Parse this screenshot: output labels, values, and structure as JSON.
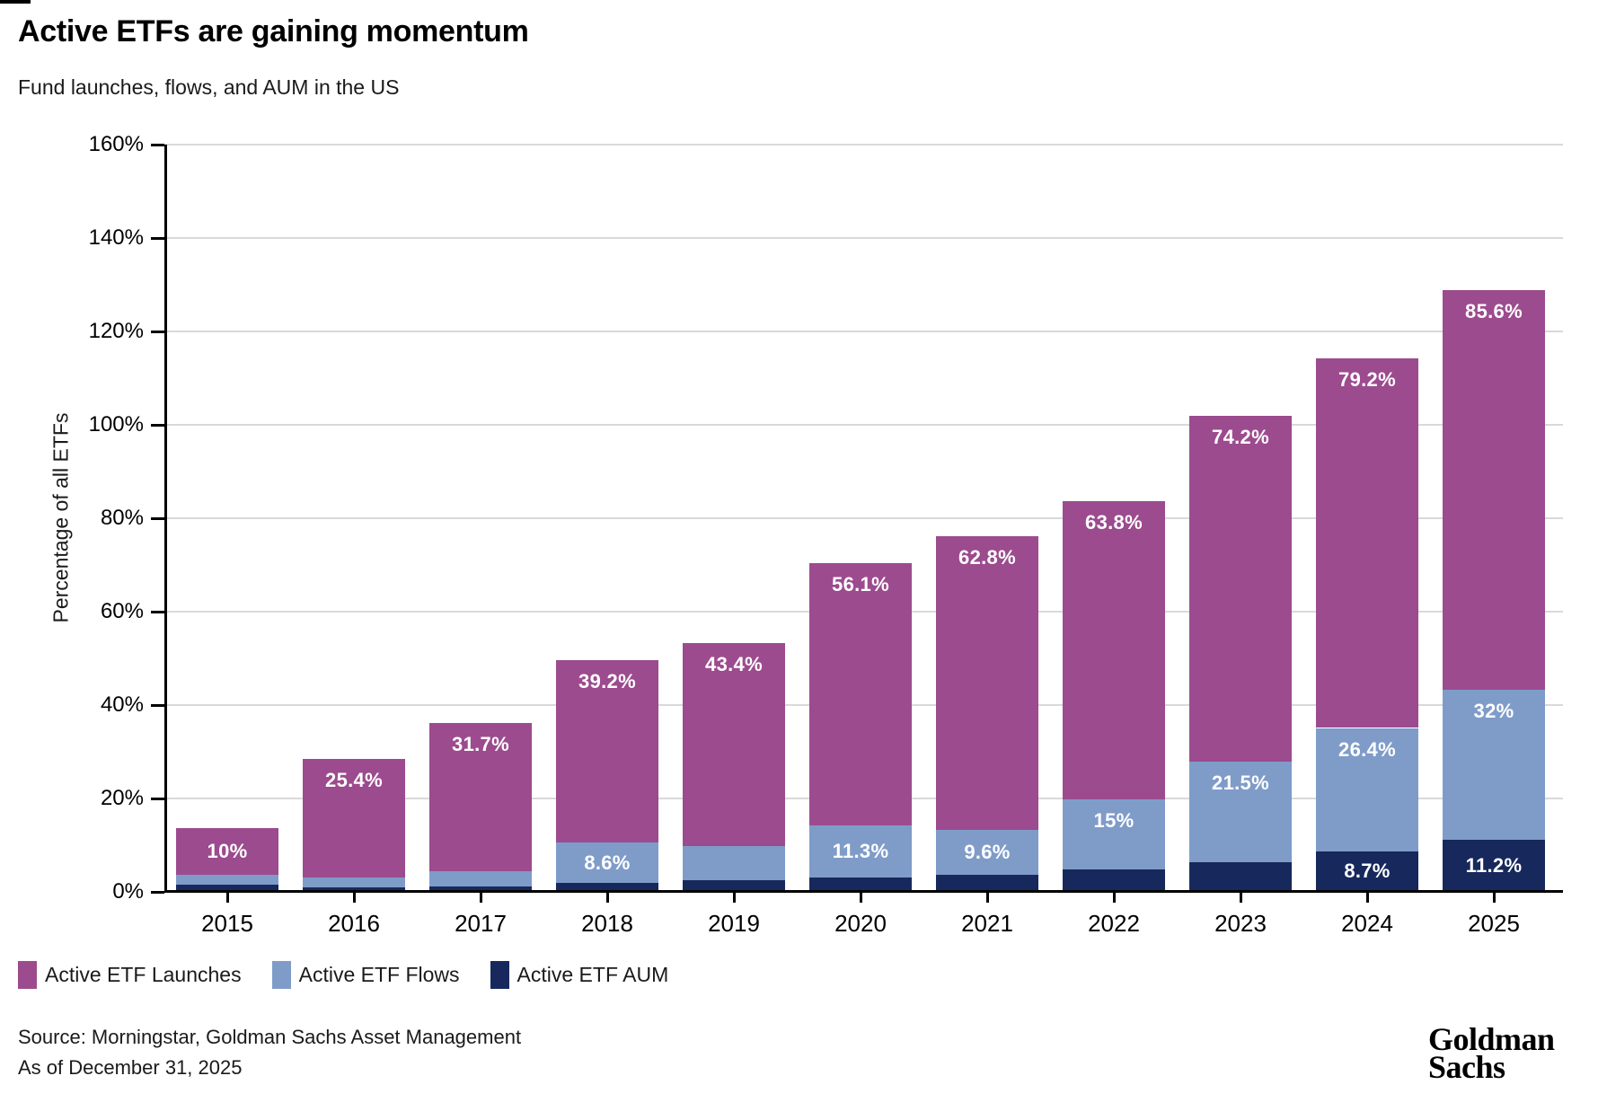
{
  "header": {
    "title": "Active ETFs are gaining momentum",
    "subtitle": "Fund launches, flows, and AUM in the US"
  },
  "chart_data": {
    "type": "bar",
    "stacked": true,
    "title": "Active ETFs are gaining momentum",
    "subtitle": "Fund launches, flows, and AUM in the US",
    "xlabel": "",
    "ylabel": "Percentage of all ETFs",
    "ylim": [
      0,
      160
    ],
    "ytick_step": 20,
    "ytick_suffix": "%",
    "grid": true,
    "legend_position": "bottom-left",
    "categories": [
      "2015",
      "2016",
      "2017",
      "2018",
      "2019",
      "2020",
      "2021",
      "2022",
      "2023",
      "2024",
      "2025"
    ],
    "series": [
      {
        "name": "Active ETF AUM",
        "color": "#17295c",
        "values": [
          1.5,
          1.0,
          1.2,
          1.9,
          2.5,
          3.0,
          3.7,
          4.8,
          6.3,
          8.7,
          11.2
        ],
        "labels": [
          null,
          null,
          null,
          null,
          null,
          null,
          null,
          null,
          null,
          "8.7%",
          "11.2%"
        ]
      },
      {
        "name": "Active ETF Flows",
        "color": "#7f9cc9",
        "values": [
          2.2,
          2.0,
          3.3,
          8.6,
          7.4,
          11.3,
          9.6,
          15,
          21.5,
          26.4,
          32
        ],
        "labels": [
          null,
          null,
          null,
          "8.6%",
          null,
          "11.3%",
          "9.6%",
          "15%",
          "21.5%",
          "26.4%",
          "32%"
        ]
      },
      {
        "name": "Active ETF Launches",
        "color": "#9c4b8e",
        "values": [
          10,
          25.4,
          31.7,
          39.2,
          43.4,
          56.1,
          62.8,
          63.8,
          74.2,
          79.2,
          85.6
        ],
        "labels": [
          "10%",
          "25.4%",
          "31.7%",
          "39.2%",
          "43.4%",
          "56.1%",
          "62.8%",
          "63.8%",
          "74.2%",
          "79.2%",
          "85.6%"
        ]
      }
    ]
  },
  "legend": {
    "items": [
      {
        "label": "Active ETF Launches",
        "color": "#9c4b8e"
      },
      {
        "label": "Active ETF Flows",
        "color": "#7f9cc9"
      },
      {
        "label": "Active ETF AUM",
        "color": "#17295c"
      }
    ]
  },
  "footer": {
    "source_line1": "Source: Morningstar, Goldman Sachs Asset Management",
    "source_line2": "As of December 31, 2025",
    "logo_line1": "Goldman",
    "logo_line2": "Sachs"
  }
}
